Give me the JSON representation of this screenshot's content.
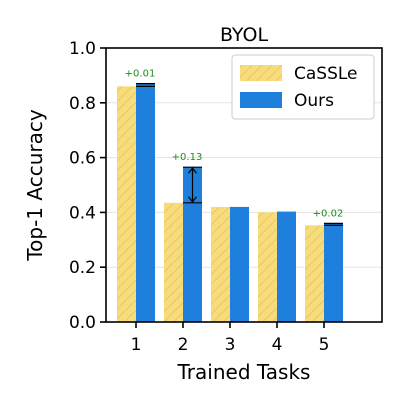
{
  "chart_data": {
    "type": "bar",
    "title": "BYOL",
    "xlabel": "Trained Tasks",
    "ylabel": "Top-1 Accuracy",
    "categories": [
      "1",
      "2",
      "3",
      "4",
      "5"
    ],
    "ylim": [
      0,
      1.0
    ],
    "yticks": [
      "0.0",
      "0.2",
      "0.4",
      "0.6",
      "0.8",
      "1.0"
    ],
    "grid": "horizontal",
    "legend_position": "top-right",
    "series": [
      {
        "name": "CaSSLe",
        "values": [
          0.86,
          0.435,
          0.42,
          0.4,
          0.353
        ],
        "color": "#f7dc7c",
        "hatch_color": "#e8c25a"
      },
      {
        "name": "Ours",
        "values": [
          0.87,
          0.565,
          0.42,
          0.403,
          0.36
        ],
        "color": "#1f7fdc"
      }
    ],
    "annotations": [
      {
        "category": "1",
        "text": "+0.01"
      },
      {
        "category": "2",
        "text": "+0.13"
      },
      {
        "category": "5",
        "text": "+0.02"
      }
    ],
    "annotation_color": "#1e8c1e"
  }
}
